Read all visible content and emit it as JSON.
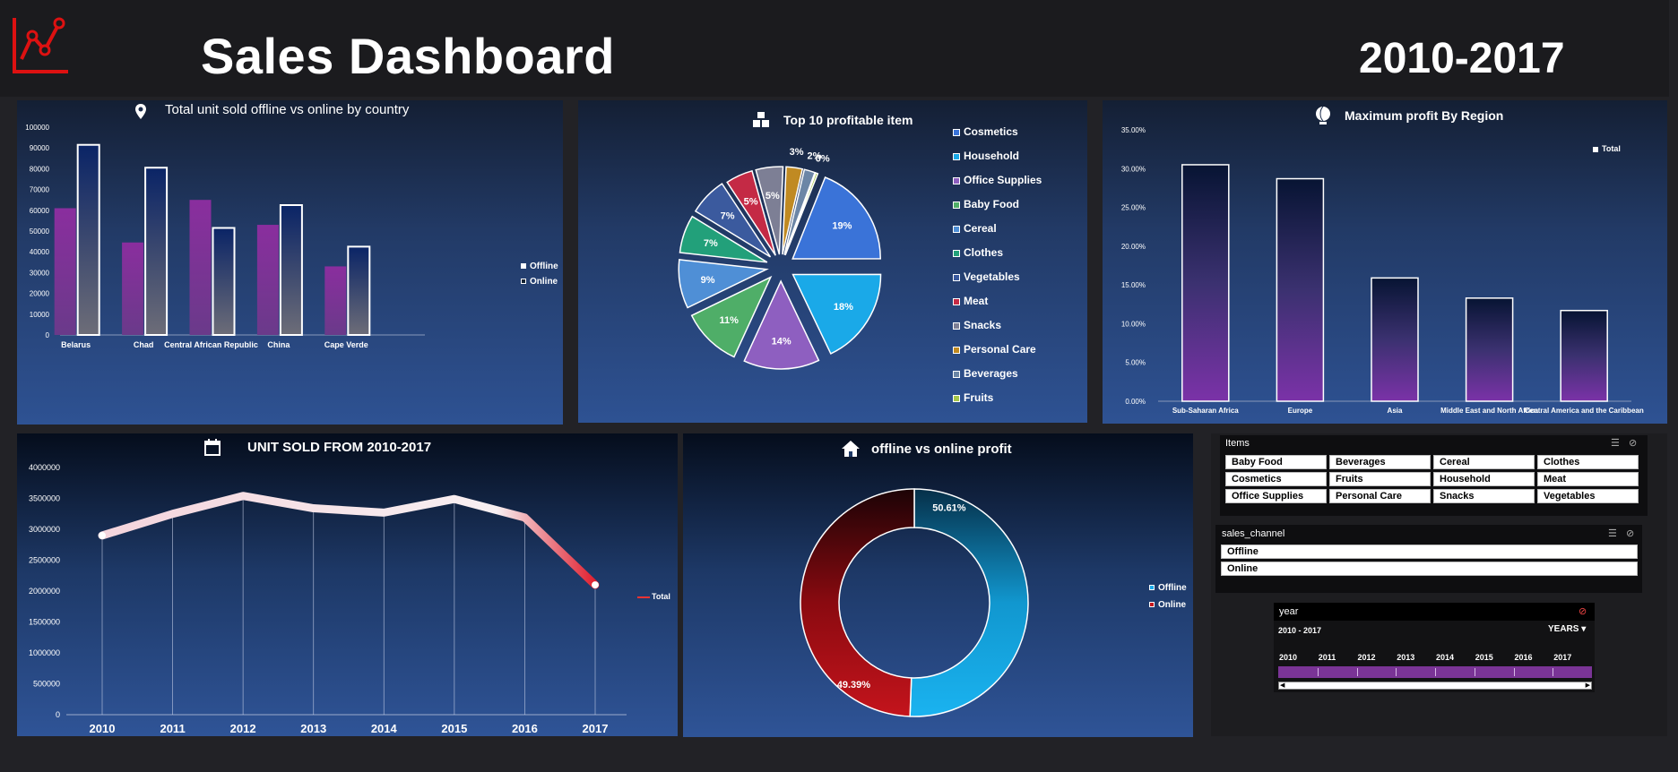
{
  "header": {
    "title": "Sales Dashboard",
    "years": "2010-2017"
  },
  "colors": {
    "offline": "#8a3aa0",
    "online": "#0b2a6e",
    "accent_red": "#e02020",
    "cyan": "#1aa9e8"
  },
  "panels": {
    "country": {
      "title": "Total unit sold offline vs online by country"
    },
    "items": {
      "title": "Top 10 profitable item"
    },
    "region": {
      "title": "Maximum profit By Region"
    },
    "units": {
      "title": "UNIT SOLD FROM 2010-2017"
    },
    "channel": {
      "title": "offline vs online profit"
    }
  },
  "chart_data": [
    {
      "id": "country",
      "type": "bar",
      "title": "Total unit sold offline vs online by country",
      "categories": [
        "Belarus",
        "Chad",
        "Central African Republic",
        "China",
        "Cape Verde"
      ],
      "series": [
        {
          "name": "Offline",
          "values": [
            61000,
            44500,
            65000,
            53000,
            33000
          ]
        },
        {
          "name": "Online",
          "values": [
            91500,
            80500,
            51500,
            62500,
            42500
          ]
        }
      ],
      "yticks": [
        "0",
        "10000",
        "20000",
        "30000",
        "40000",
        "50000",
        "60000",
        "70000",
        "80000",
        "90000",
        "100000"
      ],
      "ylim": [
        0,
        100000
      ],
      "legend": "right"
    },
    {
      "id": "items",
      "type": "pie",
      "title": "Top 10 profitable item",
      "slices": [
        {
          "label": "Cosmetics",
          "value": 19,
          "text": "19%",
          "color": "#3a73d8"
        },
        {
          "label": "Household",
          "value": 18,
          "text": "18%",
          "color": "#1aa9e8"
        },
        {
          "label": "Office Supplies",
          "value": 14,
          "text": "14%",
          "color": "#8e5fc0"
        },
        {
          "label": "Baby Food",
          "value": 11,
          "text": "11%",
          "color": "#4fae68"
        },
        {
          "label": "Cereal",
          "value": 9,
          "text": "9%",
          "color": "#4f8fd6"
        },
        {
          "label": "Clothes",
          "value": 7,
          "text": "7%",
          "color": "#22a07a"
        },
        {
          "label": "Vegetables",
          "value": 7,
          "text": "7%",
          "color": "#3b5a9e"
        },
        {
          "label": "Meat",
          "value": 5,
          "text": "5%",
          "color": "#c42a45"
        },
        {
          "label": "Snacks",
          "value": 5,
          "text": "5%",
          "color": "#7d7f95"
        },
        {
          "label": "Personal Care",
          "value": 3,
          "text": "3%",
          "color": "#c08a22"
        },
        {
          "label": "Beverages",
          "value": 2,
          "text": "2%",
          "color": "#6c86a6"
        },
        {
          "label": "Fruits",
          "value": 0.4,
          "text": "0%",
          "color": "#a6c64a"
        }
      ],
      "legend": "right"
    },
    {
      "id": "region",
      "type": "bar",
      "title": "Maximum profit By Region",
      "categories": [
        "Sub-Saharan Africa",
        "Europe",
        "Asia",
        "Middle East and North Africa",
        "Central America and the Caribbean"
      ],
      "values": [
        30.5,
        28.7,
        15.9,
        13.3,
        11.7
      ],
      "yticks": [
        "0.00%",
        "5.00%",
        "10.00%",
        "15.00%",
        "20.00%",
        "25.00%",
        "30.00%",
        "35.00%"
      ],
      "ylim": [
        0,
        35
      ],
      "legend_label": "Total"
    },
    {
      "id": "units",
      "type": "line",
      "title": "UNIT SOLD FROM 2010-2017",
      "x": [
        "2010",
        "2011",
        "2012",
        "2013",
        "2014",
        "2015",
        "2016",
        "2017"
      ],
      "values": [
        2900000,
        3250000,
        3540000,
        3340000,
        3270000,
        3490000,
        3190000,
        2100000
      ],
      "yticks": [
        "0",
        "500000",
        "1000000",
        "1500000",
        "2000000",
        "2500000",
        "3000000",
        "3500000",
        "4000000"
      ],
      "ylim": [
        0,
        4000000
      ],
      "legend_label": "Total"
    },
    {
      "id": "channel",
      "type": "pie",
      "title": "offline vs online profit",
      "slices": [
        {
          "label": "Offline",
          "value": 50.61,
          "text": "50.61%",
          "color": "#1aa9e8"
        },
        {
          "label": "Online",
          "value": 49.39,
          "text": "49.39%",
          "color": "#a00c12"
        }
      ]
    }
  ],
  "slicers": {
    "items": {
      "title": "Items",
      "options": [
        "Baby Food",
        "Beverages",
        "Cereal",
        "Clothes",
        "Cosmetics",
        "Fruits",
        "Household",
        "Meat",
        "Office Supplies",
        "Personal Care",
        "Snacks",
        "Vegetables"
      ]
    },
    "channel": {
      "title": "sales_channel",
      "options": [
        "Offline",
        "Online"
      ]
    },
    "year": {
      "title": "year",
      "range": "2010 - 2017",
      "level": "YEARS",
      "years": [
        "2010",
        "2011",
        "2012",
        "2013",
        "2014",
        "2015",
        "2016",
        "2017"
      ]
    }
  }
}
